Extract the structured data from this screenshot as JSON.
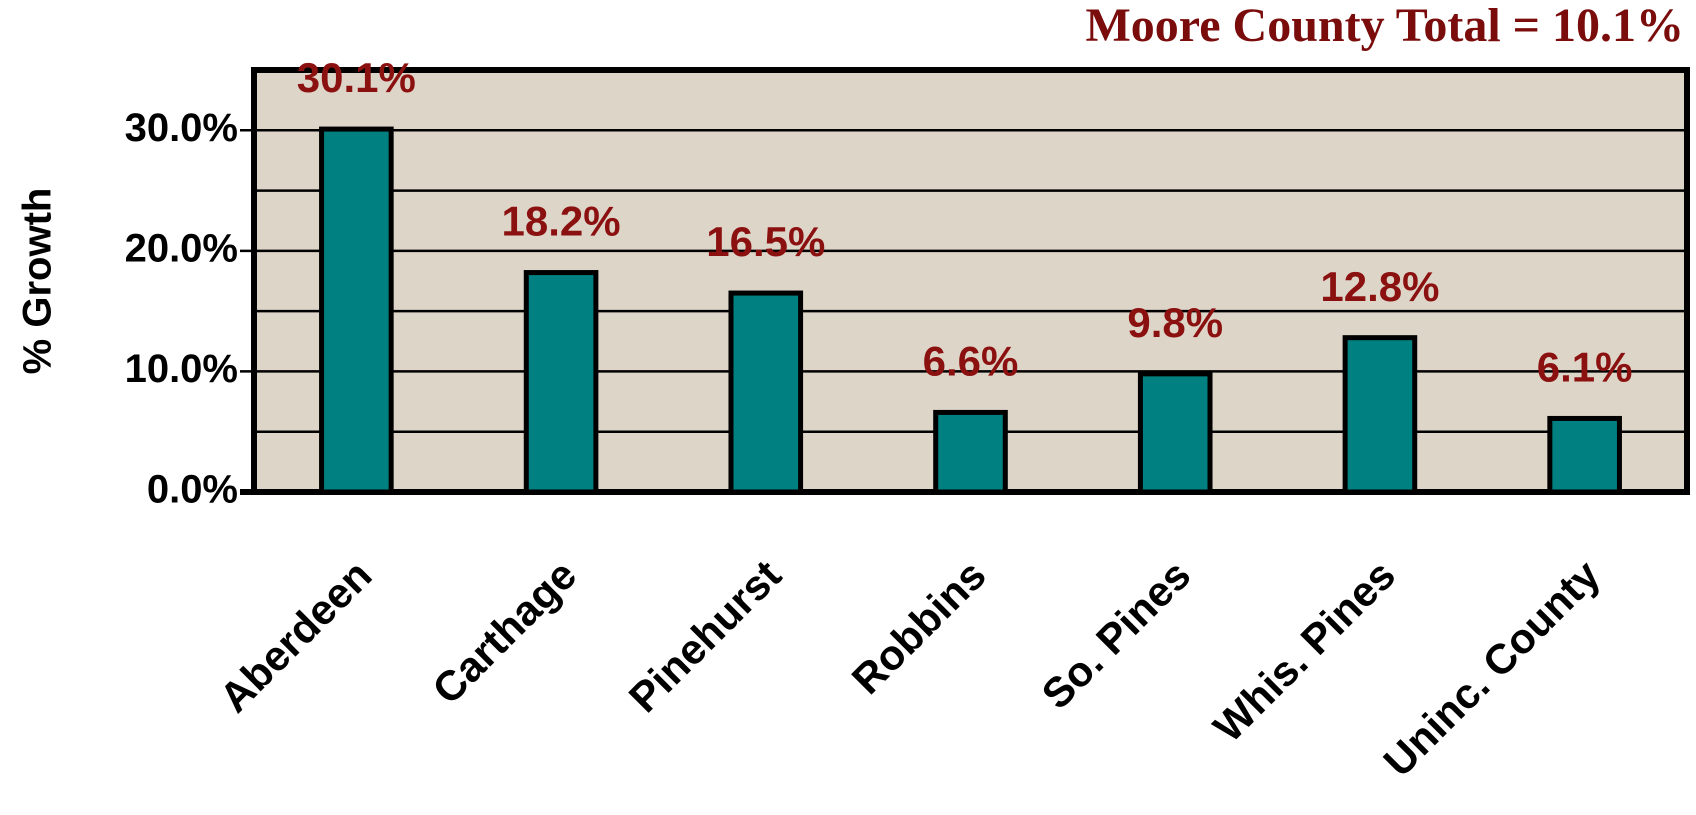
{
  "chart_data": {
    "type": "bar",
    "title": "Moore County Total = 10.1%",
    "y_label": "% Growth",
    "categories": [
      "Aberdeen",
      "Carthage",
      "Pinehurst",
      "Robbins",
      "So. Pines",
      "Whis. Pines",
      "Uninc. County"
    ],
    "values": [
      30.1,
      18.2,
      16.5,
      6.6,
      9.8,
      12.8,
      6.1
    ],
    "value_labels": [
      "30.1%",
      "18.2%",
      "16.5%",
      "6.6%",
      "9.8%",
      "12.8%",
      "6.1%"
    ],
    "color": "#008080",
    "ylim": [
      0,
      35
    ],
    "yticks": [
      {
        "value": 0,
        "label": "0.0%"
      },
      {
        "value": 10,
        "label": "10.0%"
      },
      {
        "value": 20,
        "label": "20.0%"
      },
      {
        "value": 30,
        "label": "30.0%"
      }
    ],
    "minor_yticks": [
      5,
      15,
      25
    ],
    "grid": true
  }
}
